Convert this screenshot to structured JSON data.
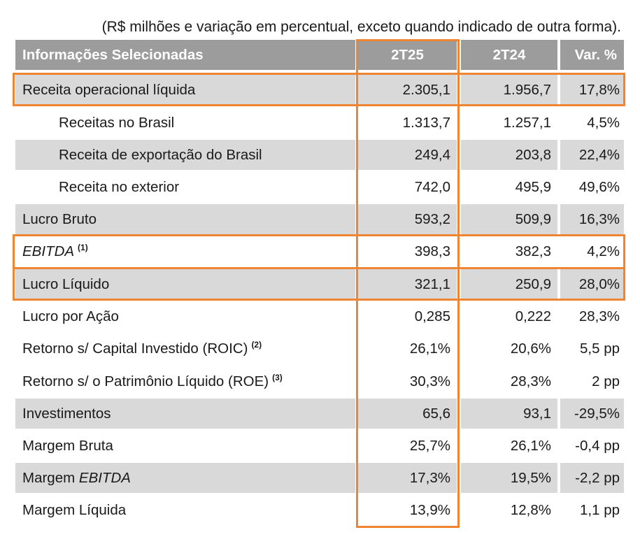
{
  "note": "(R$ milhões e variação em percentual, exceto quando indicado de outra forma).",
  "headers": {
    "label": "Informações Selecionadas",
    "col1": "2T25",
    "col2": "2T24",
    "col3": "Var. %"
  },
  "rows": [
    {
      "label": "Receita operacional líquida",
      "c1": "2.305,1",
      "c2": "1.956,7",
      "c3": "17,8%"
    },
    {
      "label": "Receitas no Brasil",
      "c1": "1.313,7",
      "c2": "1.257,1",
      "c3": "4,5%"
    },
    {
      "label": "Receita de exportação do Brasil",
      "c1": "249,4",
      "c2": "203,8",
      "c3": "22,4%"
    },
    {
      "label": "Receita no exterior",
      "c1": "742,0",
      "c2": "495,9",
      "c3": "49,6%"
    },
    {
      "label": "Lucro Bruto",
      "c1": "593,2",
      "c2": "509,9",
      "c3": "16,3%"
    },
    {
      "label": "EBITDA",
      "sup": "(1)",
      "c1": "398,3",
      "c2": "382,3",
      "c3": "4,2%"
    },
    {
      "label": "Lucro Líquido",
      "c1": "321,1",
      "c2": "250,9",
      "c3": "28,0%"
    },
    {
      "label": "Lucro por Ação",
      "c1": "0,285",
      "c2": "0,222",
      "c3": "28,3%"
    },
    {
      "label": "Retorno s/ Capital Investido (ROIC)",
      "sup": "(2)",
      "c1": "26,1%",
      "c2": "20,6%",
      "c3": "5,5 pp"
    },
    {
      "label": "Retorno s/ o Patrimônio Líquido (ROE)",
      "sup": "(3)",
      "c1": "30,3%",
      "c2": "28,3%",
      "c3": "2 pp"
    },
    {
      "label": "Investimentos",
      "c1": "65,6",
      "c2": "93,1",
      "c3": "-29,5%"
    },
    {
      "label": "Margem Bruta",
      "c1": "25,7%",
      "c2": "26,1%",
      "c3": "-0,4 pp"
    },
    {
      "label_prefix": "Margem ",
      "label_em": "EBITDA",
      "c1": "17,3%",
      "c2": "19,5%",
      "c3": "-2,2 pp"
    },
    {
      "label": "Margem Líquida",
      "c1": "13,9%",
      "c2": "12,8%",
      "c3": "1,1 pp"
    }
  ],
  "colors": {
    "header_bg": "#9c9c9c",
    "shaded_row": "#d9d9d9",
    "highlight": "#ef8532"
  }
}
